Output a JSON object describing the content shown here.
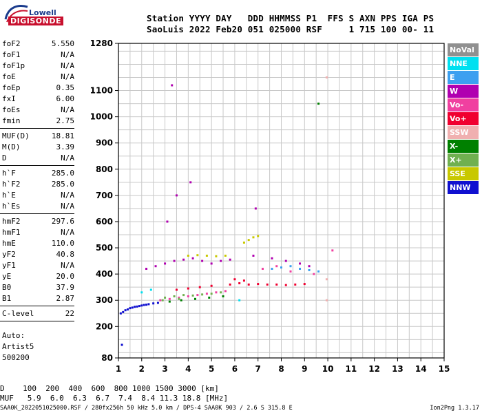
{
  "logo": {
    "top": "Lowell",
    "bottom": "DIGISONDE"
  },
  "header": {
    "line1": "Station YYYY DAY   DDD HHMMSS P1  FFS S AXN PPS IGA PS",
    "line2": "SaoLuis 2022 Feb20 051 025000 RSF     1 715 100 00- 11"
  },
  "params": [
    {
      "name": "foF2",
      "value": "5.550"
    },
    {
      "name": "foF1",
      "value": "N/A"
    },
    {
      "name": "foF1p",
      "value": "N/A"
    },
    {
      "name": "foE",
      "value": "N/A"
    },
    {
      "name": "foEp",
      "value": "0.35"
    },
    {
      "name": "fxI",
      "value": "6.00"
    },
    {
      "name": "foEs",
      "value": "N/A"
    },
    {
      "name": "fmin",
      "value": "2.75"
    },
    {
      "sep": true
    },
    {
      "name": "MUF(D)",
      "value": "18.81"
    },
    {
      "name": "M(D)",
      "value": "3.39"
    },
    {
      "name": "D",
      "value": "N/A"
    },
    {
      "sep": true
    },
    {
      "name": "h`F",
      "value": "285.0"
    },
    {
      "name": "h`F2",
      "value": "285.0"
    },
    {
      "name": "h`E",
      "value": "N/A"
    },
    {
      "name": "h`Es",
      "value": "N/A"
    },
    {
      "sep": true
    },
    {
      "name": "hmF2",
      "value": "297.6"
    },
    {
      "name": "hmF1",
      "value": "N/A"
    },
    {
      "name": "hmE",
      "value": "110.0"
    },
    {
      "name": "yF2",
      "value": "40.8"
    },
    {
      "name": "yF1",
      "value": "N/A"
    },
    {
      "name": "yE",
      "value": "20.0"
    },
    {
      "name": "B0",
      "value": "37.9"
    },
    {
      "name": "B1",
      "value": "2.87"
    },
    {
      "sep": true
    },
    {
      "name": "C-level",
      "value": "22"
    },
    {
      "sep": true
    }
  ],
  "auto": {
    "line1": "Auto:",
    "line2": "Artist5",
    "line3": "500200"
  },
  "muf_table": {
    "line1": "D    100  200  400  600  800 1000 1500 3000 [km]",
    "line2": "MUF   5.9  6.0  6.3  6.7  7.4  8.4 11.3 18.8 [MHz]"
  },
  "footer": {
    "left": "SAA0K_2022051025000.RSF / 280fx256h 50 kHz 5.0 km / DPS-4 SAA0K 903 / 2.6 S 315.8 E",
    "right": "Ion2Png 1.3.17"
  },
  "legend": [
    {
      "label": "NoVal",
      "color": "#909090"
    },
    {
      "label": "NNE",
      "color": "#00e0f0"
    },
    {
      "label": "E",
      "color": "#3ca0f0"
    },
    {
      "label": "W",
      "color": "#b000b0"
    },
    {
      "label": "Vo-",
      "color": "#f040a0"
    },
    {
      "label": "Vo+",
      "color": "#f00030"
    },
    {
      "label": "SSW",
      "color": "#f0b0b0"
    },
    {
      "label": "X-",
      "color": "#008000"
    },
    {
      "label": "X+",
      "color": "#70b050"
    },
    {
      "label": "SSE",
      "color": "#c8c800"
    },
    {
      "label": "NNW",
      "color": "#1010d0"
    }
  ],
  "chart_data": {
    "type": "scatter",
    "xlabel": "",
    "ylabel": "",
    "xlim": [
      1,
      15
    ],
    "ylim": [
      80,
      1280
    ],
    "x_ticks": [
      1,
      2,
      3,
      4,
      5,
      6,
      7,
      8,
      9,
      10,
      11,
      12,
      13,
      14,
      15
    ],
    "y_ticks": [
      80,
      200,
      300,
      400,
      500,
      600,
      700,
      800,
      900,
      1000,
      1100,
      1280
    ],
    "grid": true,
    "series": [
      {
        "name": "NNW",
        "color": "#1010d0",
        "points": [
          [
            1.1,
            250
          ],
          [
            1.3,
            262
          ],
          [
            1.5,
            270
          ],
          [
            1.7,
            275
          ],
          [
            1.9,
            278
          ],
          [
            2.1,
            282
          ],
          [
            2.3,
            285
          ],
          [
            2.5,
            288
          ],
          [
            2.7,
            290
          ],
          [
            1.2,
            255
          ],
          [
            1.4,
            265
          ],
          [
            1.6,
            272
          ],
          [
            1.8,
            276
          ],
          [
            2.0,
            280
          ],
          [
            2.2,
            283
          ],
          [
            1.15,
            130
          ]
        ]
      },
      {
        "name": "W",
        "color": "#b000b0",
        "points": [
          [
            2.2,
            420
          ],
          [
            2.6,
            430
          ],
          [
            3.0,
            440
          ],
          [
            3.4,
            450
          ],
          [
            3.8,
            455
          ],
          [
            4.2,
            460
          ],
          [
            4.6,
            450
          ],
          [
            5.0,
            440
          ],
          [
            5.4,
            450
          ],
          [
            5.8,
            455
          ],
          [
            6.8,
            470
          ],
          [
            7.6,
            460
          ],
          [
            8.2,
            450
          ],
          [
            8.8,
            440
          ],
          [
            9.2,
            430
          ],
          [
            3.1,
            600
          ],
          [
            3.5,
            700
          ],
          [
            4.1,
            750
          ],
          [
            6.9,
            650
          ],
          [
            3.3,
            1120
          ]
        ]
      },
      {
        "name": "Vo+",
        "color": "#f00030",
        "points": [
          [
            5.8,
            360
          ],
          [
            6.2,
            365
          ],
          [
            6.6,
            360
          ],
          [
            7.0,
            362
          ],
          [
            7.4,
            360
          ],
          [
            7.8,
            360
          ],
          [
            8.2,
            358
          ],
          [
            8.6,
            360
          ],
          [
            9.0,
            362
          ],
          [
            6.0,
            380
          ],
          [
            6.4,
            375
          ],
          [
            3.5,
            340
          ],
          [
            4.0,
            345
          ],
          [
            4.5,
            350
          ],
          [
            5.0,
            355
          ]
        ]
      },
      {
        "name": "Vo-",
        "color": "#f040a0",
        "points": [
          [
            2.8,
            300
          ],
          [
            3.2,
            305
          ],
          [
            3.6,
            310
          ],
          [
            4.0,
            315
          ],
          [
            4.4,
            320
          ],
          [
            4.8,
            325
          ],
          [
            5.2,
            330
          ],
          [
            5.6,
            335
          ],
          [
            7.2,
            420
          ],
          [
            7.8,
            430
          ],
          [
            8.4,
            410
          ],
          [
            9.4,
            400
          ],
          [
            10.2,
            490
          ]
        ]
      },
      {
        "name": "X+",
        "color": "#70b050",
        "points": [
          [
            3.0,
            310
          ],
          [
            3.4,
            315
          ],
          [
            3.8,
            320
          ],
          [
            4.2,
            318
          ],
          [
            4.6,
            322
          ],
          [
            5.0,
            325
          ],
          [
            5.4,
            330
          ],
          [
            2.9,
            300
          ],
          [
            3.6,
            305
          ]
        ]
      },
      {
        "name": "X-",
        "color": "#008000",
        "points": [
          [
            3.2,
            295
          ],
          [
            3.7,
            300
          ],
          [
            4.3,
            305
          ],
          [
            4.9,
            310
          ],
          [
            5.5,
            315
          ],
          [
            9.6,
            1050
          ]
        ]
      },
      {
        "name": "SSE",
        "color": "#c8c800",
        "points": [
          [
            4.0,
            470
          ],
          [
            4.4,
            472
          ],
          [
            4.8,
            470
          ],
          [
            5.2,
            468
          ],
          [
            5.6,
            470
          ],
          [
            6.4,
            520
          ],
          [
            6.8,
            540
          ],
          [
            7.0,
            545
          ],
          [
            6.6,
            530
          ]
        ]
      },
      {
        "name": "E",
        "color": "#3ca0f0",
        "points": [
          [
            7.6,
            420
          ],
          [
            8.0,
            425
          ],
          [
            8.4,
            430
          ],
          [
            8.8,
            420
          ],
          [
            9.2,
            415
          ],
          [
            9.6,
            410
          ]
        ]
      },
      {
        "name": "NNE",
        "color": "#00e0f0",
        "points": [
          [
            2.0,
            330
          ],
          [
            2.4,
            340
          ],
          [
            6.2,
            300
          ]
        ]
      },
      {
        "name": "SSW",
        "color": "#f0b0b0",
        "points": [
          [
            9.95,
            1150
          ],
          [
            9.95,
            380
          ],
          [
            9.95,
            300
          ]
        ]
      }
    ]
  }
}
